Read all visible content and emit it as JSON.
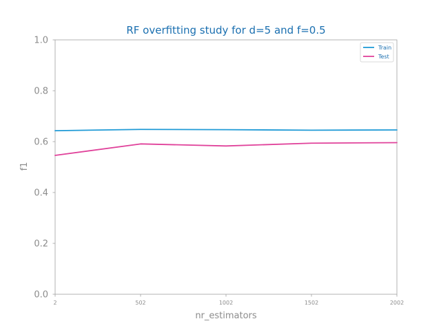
{
  "chart_data": {
    "type": "line",
    "title": "RF overfitting study for d=5 and f=0.5",
    "xlabel": "nr_estimators",
    "ylabel": "f1",
    "x": [
      2,
      502,
      1002,
      1502,
      2002
    ],
    "x_tick_labels": [
      "2",
      "502",
      "1002",
      "1502",
      "2002"
    ],
    "y_tick_labels": [
      "0.0",
      "0.2",
      "0.4",
      "0.6",
      "0.8",
      "1.0"
    ],
    "xlim": [
      2,
      2002
    ],
    "ylim": [
      0,
      1
    ],
    "grid": false,
    "legend_position": "top-right",
    "series": [
      {
        "name": "Train",
        "color": "#1f9ad6",
        "values": [
          0.643,
          0.648,
          0.647,
          0.645,
          0.646
        ]
      },
      {
        "name": "Test",
        "color": "#e0419a",
        "values": [
          0.546,
          0.591,
          0.583,
          0.594,
          0.596
        ]
      }
    ],
    "colors": {
      "title": "#1a6fb0",
      "axis_text": "#8c8c8c",
      "tick_text": "#8c8c8c",
      "spine": "#a0a0a0",
      "legend_text": "#1a6fb0"
    }
  }
}
